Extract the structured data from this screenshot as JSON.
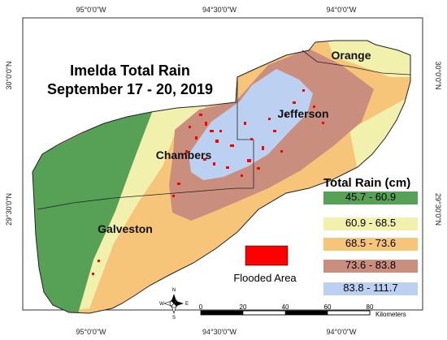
{
  "map": {
    "title_line1": "Imelda Total Rain",
    "title_line2": "September 17 - 20, 2019",
    "counties": [
      "Orange",
      "Jefferson",
      "Chambers",
      "Galveston"
    ],
    "graticule": {
      "top": [
        "95°0'0\"W",
        "94°30'0\"W",
        "94°0'0\"W"
      ],
      "bottom": [
        "95°0'0\"W",
        "94°30'0\"W",
        "94°0'0\"W"
      ],
      "left": [
        "30°0'0\"N",
        "29°30'0\"N"
      ],
      "right": [
        "30°0'0\"N",
        "29°30'0\"N"
      ]
    }
  },
  "legend": {
    "title": "Total Rain (cm)",
    "classes": [
      {
        "label": "45.7 - 60.9",
        "color": "#56a155"
      },
      {
        "label": "60.9 - 68.5",
        "color": "#f2f0ad"
      },
      {
        "label": "68.5 - 73.6",
        "color": "#f7c57a"
      },
      {
        "label": "73.6 - 83.8",
        "color": "#c98e7e"
      },
      {
        "label": "83.8 - 111.7",
        "color": "#bcd1f2"
      }
    ],
    "flooded_label": "Flooded Area",
    "flooded_color": "#ff0000"
  },
  "scale_bar": {
    "ticks": [
      "0",
      "20",
      "40",
      "60",
      "80"
    ],
    "unit": "Kilometers"
  },
  "compass": {
    "n": "N",
    "s": "S",
    "e": "E",
    "w": "W"
  }
}
